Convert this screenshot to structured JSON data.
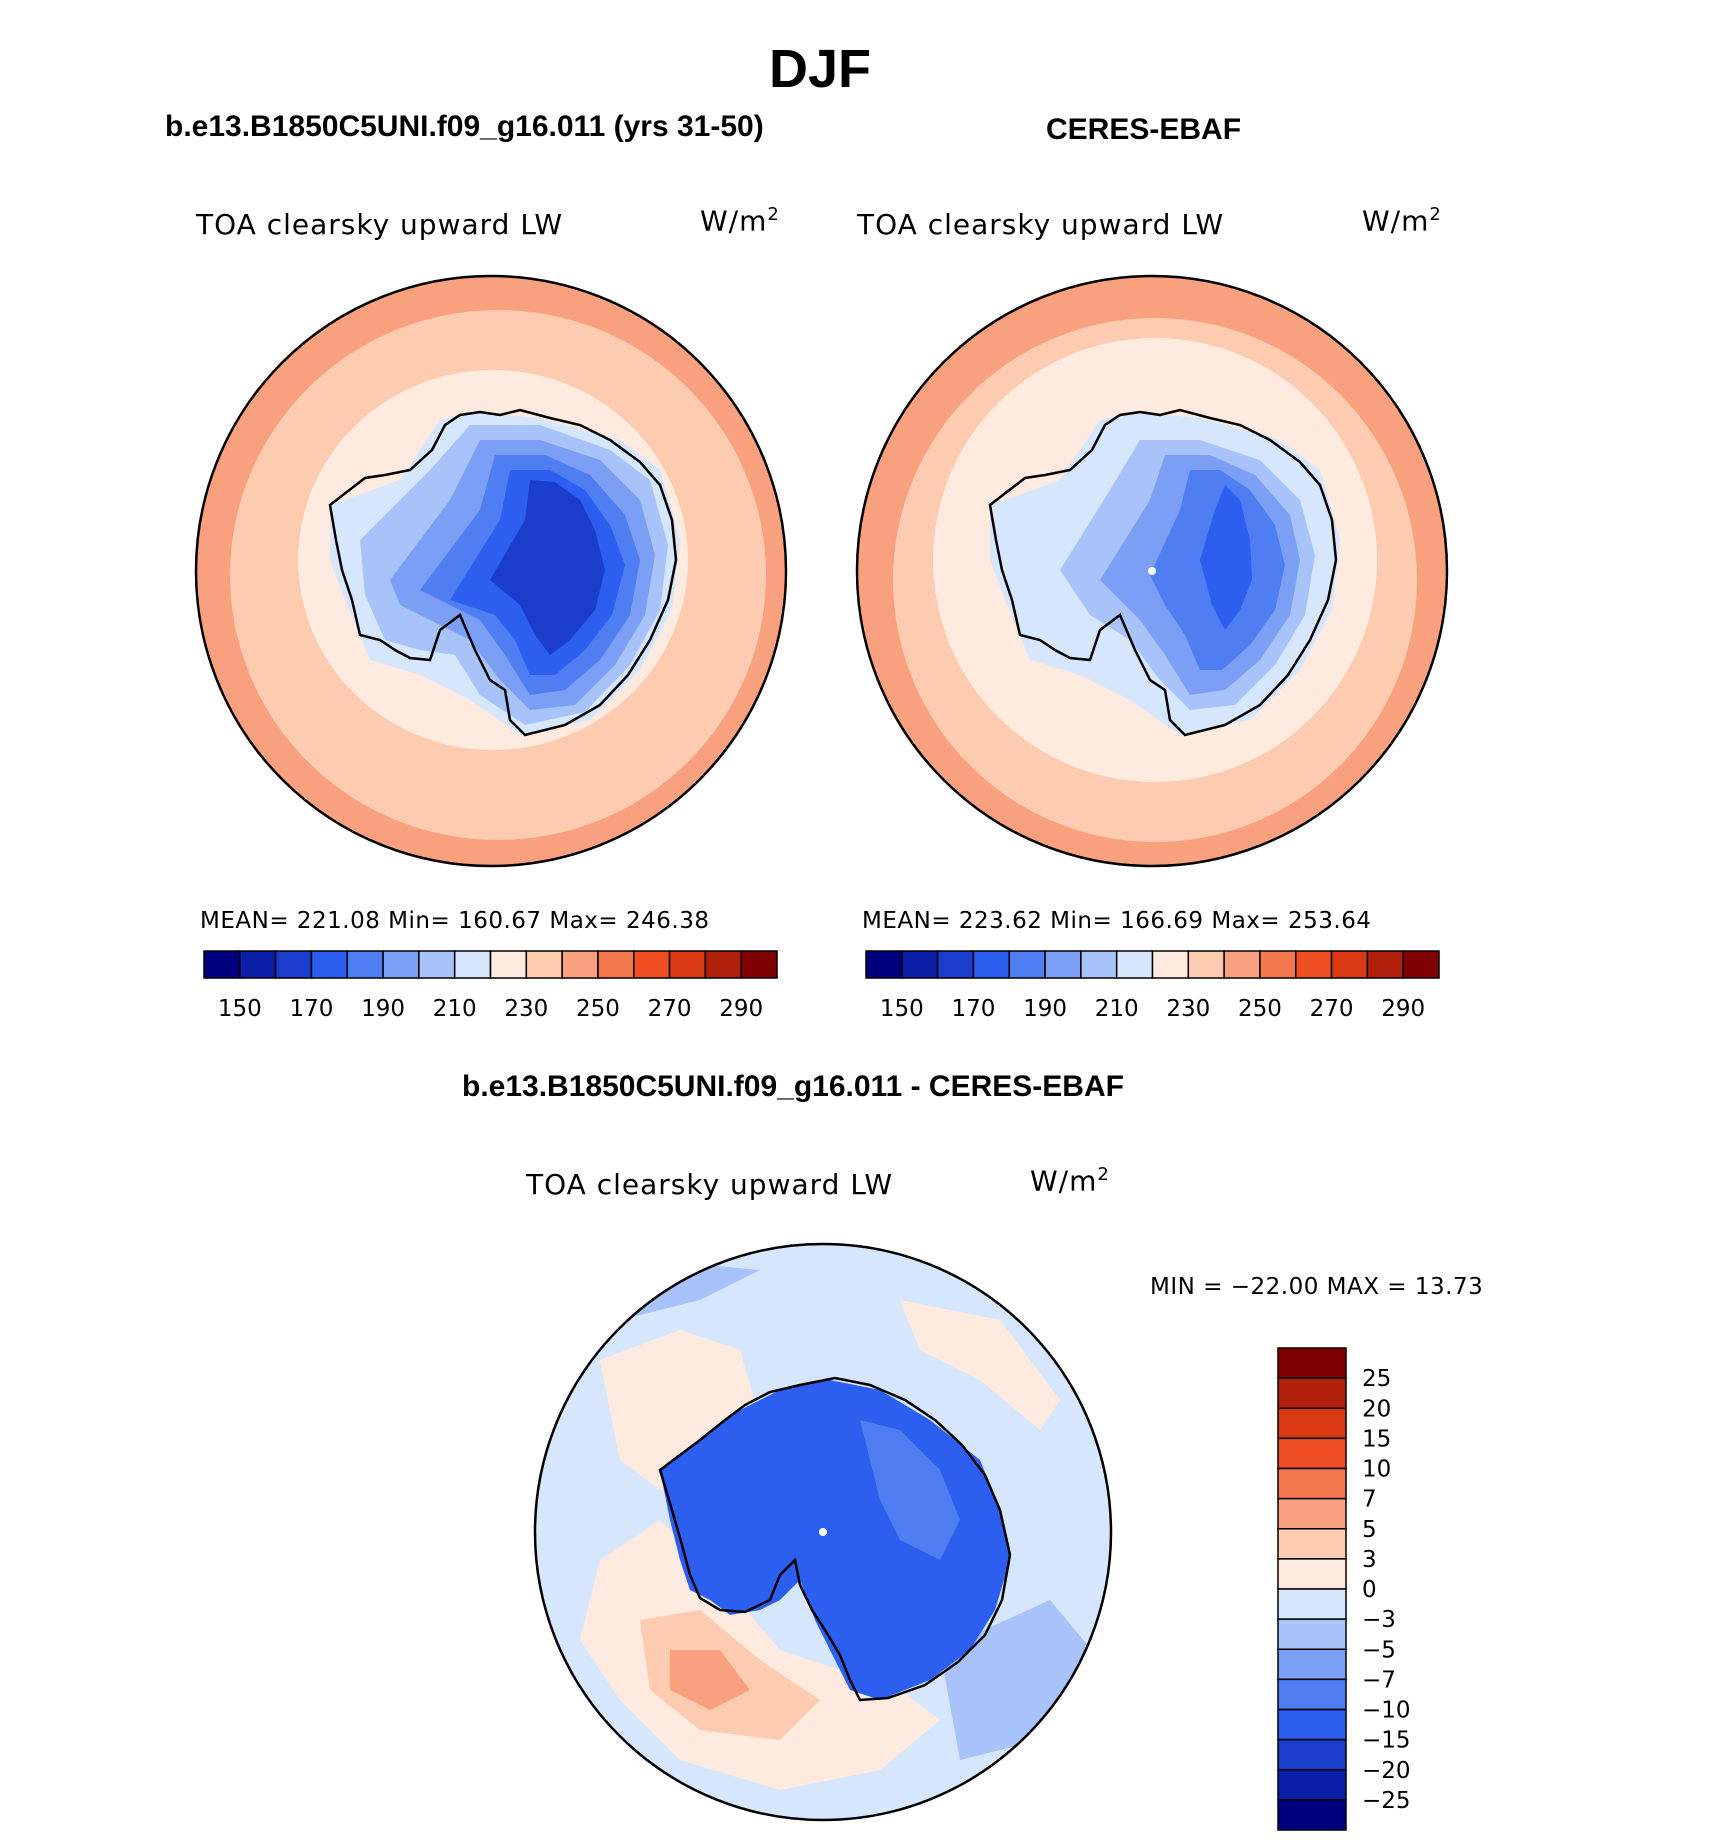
{
  "figure": {
    "season": "DJF",
    "diff_title": "b.e13.B1850C5UNI.f09_g16.011 - CERES-EBAF"
  },
  "panels": [
    {
      "title": "b.e13.B1850C5UNI.f09_g16.011 (yrs 31-50)",
      "variable": "TOA clearsky upward LW",
      "units_base": "W/m",
      "units_exp": "2",
      "stats": {
        "mean": "221.08",
        "min": "160.67",
        "max": "246.38"
      },
      "stats_text": "MEAN= 221.08   Min= 160.67   Max= 246.38"
    },
    {
      "title": "CERES-EBAF",
      "variable": "TOA clearsky upward LW",
      "units_base": "W/m",
      "units_exp": "2",
      "stats": {
        "mean": "223.62",
        "min": "166.69",
        "max": "253.64"
      },
      "stats_text": "MEAN= 223.62   Min= 166.69   Max= 253.64"
    }
  ],
  "diff_panel": {
    "variable": "TOA clearsky upward LW",
    "units_base": "W/m",
    "units_exp": "2",
    "minmax_text": "MIN = −22.00 MAX =   13.73",
    "min": -22.0,
    "max": 13.73
  },
  "colorbar_abs": {
    "tick_labels": [
      "150",
      "170",
      "190",
      "210",
      "230",
      "250",
      "270",
      "290"
    ],
    "colors": [
      "#00007f",
      "#0b1ea8",
      "#1a3dcc",
      "#2c5ef0",
      "#4f7df2",
      "#7b9ff5",
      "#a8c3fa",
      "#d6e6fd",
      "#feeadf",
      "#fccbb0",
      "#f9a17e",
      "#f4784e",
      "#ef4e22",
      "#d93913",
      "#b0200a",
      "#7f0000"
    ]
  },
  "colorbar_diff": {
    "tick_labels": [
      "25",
      "20",
      "15",
      "10",
      "7",
      "5",
      "3",
      "0",
      "−3",
      "−5",
      "−7",
      "−10",
      "−15",
      "−20",
      "−25"
    ],
    "colors": [
      "#7f0000",
      "#b0200a",
      "#d93913",
      "#ef4e22",
      "#f4784e",
      "#f9a17e",
      "#fccbb0",
      "#feeadf",
      "#d6e6fd",
      "#a8c3fa",
      "#7b9ff5",
      "#4f7df2",
      "#2c5ef0",
      "#1a3dcc",
      "#0b1ea8",
      "#00007f"
    ]
  },
  "map_colors": {
    "outer_ring": "#f9a17e",
    "mid": "#fccbb0",
    "near": "#feeadf",
    "c210": "#d6e6fd",
    "c200": "#a8c3fa",
    "c190": "#7b9ff5",
    "c180": "#4f7df2",
    "c170": "#2c5ef0",
    "c160": "#1a3dcc",
    "diff_bg": "#d6e6fd",
    "diff_warm": "#feeadf",
    "diff_warm2": "#fccbb0",
    "diff_warm3": "#f9a17e",
    "diff_cool": "#a8c3fa",
    "diff_ant": "#2c5ef0",
    "diff_ant2": "#4f7df2"
  }
}
